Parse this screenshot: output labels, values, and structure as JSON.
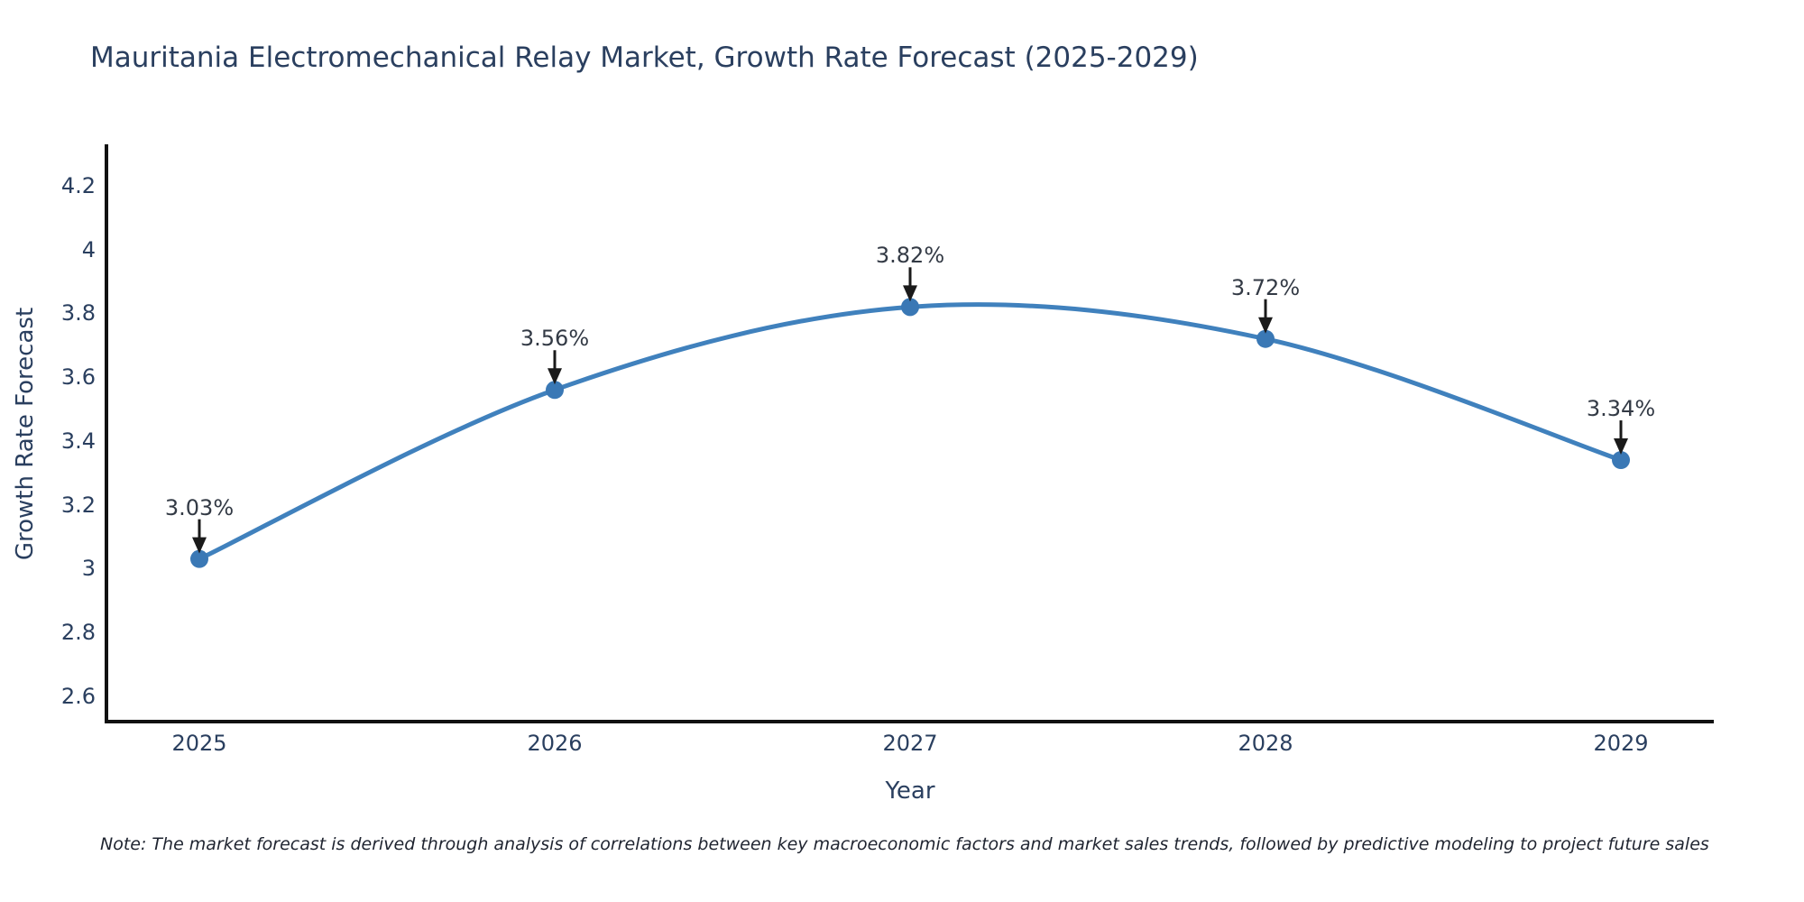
{
  "chart_data": {
    "type": "line",
    "title": "Mauritania Electromechanical Relay Market, Growth Rate Forecast (2025-2029)",
    "xlabel": "Year",
    "ylabel": "Growth Rate Forecast",
    "categories": [
      2025,
      2026,
      2027,
      2028,
      2029
    ],
    "values": [
      3.03,
      3.56,
      3.82,
      3.72,
      3.34
    ],
    "point_labels": [
      "3.03%",
      "3.56%",
      "3.82%",
      "3.72%",
      "3.34%"
    ],
    "yticks": [
      2.6,
      2.8,
      3,
      3.2,
      3.4,
      3.6,
      3.8,
      4,
      4.2
    ],
    "ylim": [
      2.52,
      4.33
    ],
    "grid": false,
    "legend_position": "none",
    "line_shape": "spline",
    "colors": {
      "line": "#4081bd",
      "marker": "#3a78b5",
      "axis": "#111111",
      "arrow": "#1a1a1a",
      "title_text": "#2a3f5f",
      "tick_text": "#2a3f5f",
      "annotation_text": "#333a45"
    }
  },
  "note": "Note: The market forecast is derived through analysis of correlations between key macroeconomic factors and market sales trends, followed by predictive modeling to project future sales"
}
